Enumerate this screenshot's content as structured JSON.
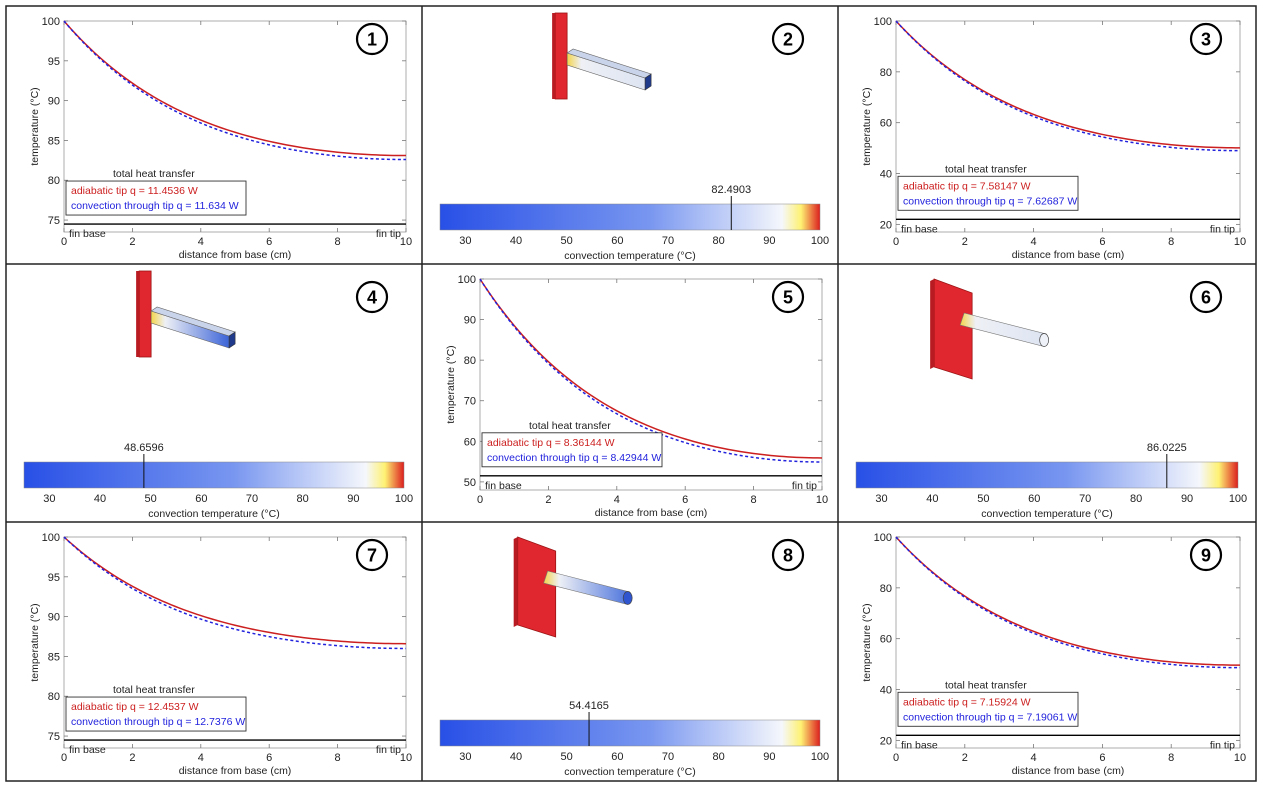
{
  "panels": [
    {
      "number": "1",
      "type": "plot",
      "chart_data": {
        "type": "line",
        "xlabel": "distance from base (cm)",
        "ylabel": "temperature (°C)",
        "xlim": [
          0,
          10
        ],
        "ylim": [
          73.5,
          100
        ],
        "xticks": [
          "0",
          "2",
          "4",
          "6",
          "8",
          "10"
        ],
        "yticks": [
          "75",
          "80",
          "85",
          "90",
          "95",
          "100"
        ],
        "base_label": "fin base",
        "tip_label": "fin tip",
        "axis_line_y": 74.5,
        "legend": {
          "title": "total heat transfer",
          "series": [
            "adiabatic tip q = 11.4536 W",
            "convection through tip q = 11.634 W"
          ]
        },
        "series": [
          {
            "name": "adiabatic tip",
            "color": "#cc1f1f",
            "style": "solid",
            "T_tip": 83.1
          },
          {
            "name": "convection through tip",
            "color": "#2222dd",
            "style": "dashed",
            "T_tip": 82.6
          }
        ]
      }
    },
    {
      "number": "2",
      "type": "fin",
      "fin_shape": "square",
      "fin_color": "#dde4f2",
      "colorbar": {
        "marker_value": "82.4903",
        "ticks": [
          "30",
          "40",
          "50",
          "60",
          "70",
          "80",
          "90",
          "100"
        ],
        "min": 25,
        "max": 100,
        "label": "convection temperature (°C)"
      }
    },
    {
      "number": "3",
      "type": "plot",
      "chart_data": {
        "type": "line",
        "xlabel": "distance from base (cm)",
        "ylabel": "temperature (°C)",
        "xlim": [
          0,
          10
        ],
        "ylim": [
          17,
          100
        ],
        "xticks": [
          "0",
          "2",
          "4",
          "6",
          "8",
          "10"
        ],
        "yticks": [
          "20",
          "40",
          "60",
          "80",
          "100"
        ],
        "base_label": "fin base",
        "tip_label": "fin tip",
        "axis_line_y": 22,
        "legend": {
          "title": "total heat transfer",
          "series": [
            "adiabatic tip q = 7.58147 W",
            "convection through tip q = 7.62687 W"
          ]
        },
        "series": [
          {
            "name": "adiabatic tip",
            "color": "#cc1f1f",
            "style": "solid",
            "T_tip": 50.1
          },
          {
            "name": "convection through tip",
            "color": "#2222dd",
            "style": "dashed",
            "T_tip": 49.0
          }
        ]
      }
    },
    {
      "number": "4",
      "type": "fin",
      "fin_shape": "square",
      "fin_color": "#3c64d8",
      "colorbar": {
        "marker_value": "48.6596",
        "ticks": [
          "30",
          "40",
          "50",
          "60",
          "70",
          "80",
          "90",
          "100"
        ],
        "min": 25,
        "max": 100,
        "label": "convection temperature (°C)"
      }
    },
    {
      "number": "5",
      "type": "plot",
      "chart_data": {
        "type": "line",
        "xlabel": "distance from base (cm)",
        "ylabel": "temperature (°C)",
        "xlim": [
          0,
          10
        ],
        "ylim": [
          48,
          100
        ],
        "xticks": [
          "0",
          "2",
          "4",
          "6",
          "8",
          "10"
        ],
        "yticks": [
          "50",
          "60",
          "70",
          "80",
          "90",
          "100"
        ],
        "base_label": "fin base",
        "tip_label": "fin tip",
        "axis_line_y": 51.5,
        "legend": {
          "title": "total heat transfer",
          "series": [
            "adiabatic tip q = 8.36144 W",
            "convection through tip q = 8.42944 W"
          ]
        },
        "series": [
          {
            "name": "adiabatic tip",
            "color": "#cc1f1f",
            "style": "solid",
            "T_tip": 55.9
          },
          {
            "name": "convection through tip",
            "color": "#2222dd",
            "style": "dashed",
            "T_tip": 54.9
          }
        ]
      }
    },
    {
      "number": "6",
      "type": "fin",
      "fin_shape": "round",
      "fin_color": "#dde4f2",
      "colorbar": {
        "marker_value": "86.0225",
        "ticks": [
          "30",
          "40",
          "50",
          "60",
          "70",
          "80",
          "90",
          "100"
        ],
        "min": 25,
        "max": 100,
        "label": "convection temperature (°C)"
      }
    },
    {
      "number": "7",
      "type": "plot",
      "chart_data": {
        "type": "line",
        "xlabel": "distance from base (cm)",
        "ylabel": "temperature (°C)",
        "xlim": [
          0,
          10
        ],
        "ylim": [
          73.5,
          100
        ],
        "xticks": [
          "0",
          "2",
          "4",
          "6",
          "8",
          "10"
        ],
        "yticks": [
          "75",
          "80",
          "85",
          "90",
          "95",
          "100"
        ],
        "base_label": "fin base",
        "tip_label": "fin tip",
        "axis_line_y": 74.5,
        "legend": {
          "title": "total heat transfer",
          "series": [
            "adiabatic tip q = 12.4537 W",
            "convection through tip q = 12.7376 W"
          ]
        },
        "series": [
          {
            "name": "adiabatic tip",
            "color": "#cc1f1f",
            "style": "solid",
            "T_tip": 86.6
          },
          {
            "name": "convection through tip",
            "color": "#2222dd",
            "style": "dashed",
            "T_tip": 86.0
          }
        ]
      }
    },
    {
      "number": "8",
      "type": "fin",
      "fin_shape": "round",
      "fin_color": "#4a72dc",
      "colorbar": {
        "marker_value": "54.4165",
        "ticks": [
          "30",
          "40",
          "50",
          "60",
          "70",
          "80",
          "90",
          "100"
        ],
        "min": 25,
        "max": 100,
        "label": "convection temperature (°C)"
      }
    },
    {
      "number": "9",
      "type": "plot",
      "chart_data": {
        "type": "line",
        "xlabel": "distance from base (cm)",
        "ylabel": "temperature (°C)",
        "xlim": [
          0,
          10
        ],
        "ylim": [
          17,
          100
        ],
        "xticks": [
          "0",
          "2",
          "4",
          "6",
          "8",
          "10"
        ],
        "yticks": [
          "20",
          "40",
          "60",
          "80",
          "100"
        ],
        "base_label": "fin base",
        "tip_label": "fin tip",
        "axis_line_y": 22,
        "legend": {
          "title": "total heat transfer",
          "series": [
            "adiabatic tip q = 7.15924 W",
            "convection through tip q = 7.19061 W"
          ]
        },
        "series": [
          {
            "name": "adiabatic tip",
            "color": "#cc1f1f",
            "style": "solid",
            "T_tip": 49.6
          },
          {
            "name": "convection through tip",
            "color": "#2222dd",
            "style": "dashed",
            "T_tip": 48.6
          }
        ]
      }
    }
  ]
}
